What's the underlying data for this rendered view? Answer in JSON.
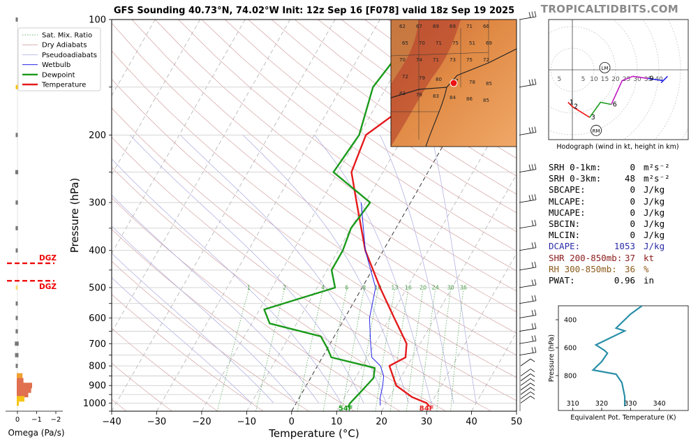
{
  "title": "GFS Sounding 40.73°N, 74.02°W Init: 12z Sep 16 [F078] valid 18z Sep 19 2025",
  "brand": "TROPICALTIDBITS.COM",
  "skewt": {
    "xlabel": "Temperature (°C)",
    "ylabel": "Pressure (hPa)",
    "x_ticks": [
      "−40",
      "−30",
      "−20",
      "−10",
      "0",
      "10",
      "20",
      "30",
      "40",
      "50"
    ],
    "y_ticks": [
      "100",
      "200",
      "300",
      "400",
      "500",
      "600",
      "700",
      "800",
      "900",
      "1000"
    ],
    "legend": [
      "Sat. Mix. Ratio",
      "Dry Adiabats",
      "Pseudoadiabats",
      "Wetbulb",
      "Dewpoint",
      "Temperature"
    ],
    "colors": {
      "temperature": "#e41a1c",
      "dewpoint": "#1a9a1a",
      "wetbulb": "#2424e8",
      "dry": "#d4a0a0",
      "moist": "#a8a8e0",
      "mix": "#3c9a3c"
    },
    "mix_ratio_labels": [
      "1",
      "2",
      "4",
      "6",
      "8",
      "10",
      "13",
      "16",
      "20",
      "24",
      "30",
      "36"
    ],
    "surface_temp_label": "84F",
    "surface_dew_label": "54F"
  },
  "chart_data": [
    {
      "type": "line",
      "title": "GFS Sounding 40.73°N, 74.02°W Init: 12z Sep 16 [F078] valid 18z Sep 19 2025",
      "xlabel": "Temperature (°C)",
      "ylabel": "Pressure (hPa)",
      "xlim": [
        -40,
        50
      ],
      "ylim": [
        1050,
        100
      ],
      "log_y": true,
      "series": [
        {
          "name": "Temperature",
          "points": [
            [
              -0.5,
              100
            ],
            [
              -10,
              150
            ],
            [
              -18.5,
              200
            ],
            [
              -17,
              250
            ],
            [
              -12,
              300
            ],
            [
              -4,
              400
            ],
            [
              4,
              500
            ],
            [
              11,
              600
            ],
            [
              17,
              700
            ],
            [
              18.5,
              760
            ],
            [
              16,
              800
            ],
            [
              20,
              900
            ],
            [
              25,
              965
            ],
            [
              29,
              1000
            ],
            [
              30,
              1020
            ]
          ]
        },
        {
          "name": "Dewpoint",
          "points": [
            [
              -20,
              100
            ],
            [
              -23,
              150
            ],
            [
              -20,
              200
            ],
            [
              -21,
              250
            ],
            [
              -9,
              300
            ],
            [
              -10,
              350
            ],
            [
              -9,
              400
            ],
            [
              -9,
              450
            ],
            [
              -6,
              500
            ],
            [
              -19,
              570
            ],
            [
              -16,
              620
            ],
            [
              -3,
              670
            ],
            [
              0,
              720
            ],
            [
              2,
              760
            ],
            [
              13,
              810
            ],
            [
              14,
              860
            ],
            [
              13,
              930
            ],
            [
              12,
              1000
            ],
            [
              12,
              1025
            ]
          ]
        },
        {
          "name": "Wetbulb",
          "points": [
            [
              -11,
              300
            ],
            [
              -4,
              400
            ],
            [
              3,
              500
            ],
            [
              5.5,
              600
            ],
            [
              9,
              700
            ],
            [
              11,
              760
            ],
            [
              14,
              800
            ],
            [
              16,
              850
            ],
            [
              17,
              900
            ],
            [
              18,
              970
            ],
            [
              19,
              1015
            ]
          ]
        }
      ]
    },
    {
      "type": "line",
      "title": "Hodograph (wind in kt, height in km)",
      "xlim": [
        -15,
        50
      ],
      "ylim": [
        -50,
        50
      ],
      "series": [
        {
          "name": "0-3 km",
          "points": [
            [
              -2,
              -15
            ],
            [
              0,
              -17
            ],
            [
              8,
              -22
            ]
          ]
        },
        {
          "name": "3-6 km",
          "points": [
            [
              8,
              -22
            ],
            [
              13,
              -15
            ],
            [
              18,
              -16
            ]
          ]
        },
        {
          "name": "6-9 km",
          "points": [
            [
              18,
              -16
            ],
            [
              23,
              -5
            ],
            [
              28,
              -3
            ],
            [
              35,
              -4
            ]
          ]
        },
        {
          "name": "9+ km",
          "points": [
            [
              35,
              -4
            ],
            [
              42,
              -5
            ],
            [
              44,
              -3
            ],
            [
              41,
              -6
            ]
          ]
        }
      ],
      "height_labels": [
        "1",
        "2",
        "3",
        "6",
        "9"
      ],
      "ring_labels": [
        "5",
        "5",
        "10",
        "15",
        "20",
        "25",
        "30",
        "35",
        "40"
      ],
      "markers": [
        "LM",
        "RM"
      ]
    },
    {
      "type": "line",
      "title": "Equivalent Pot. Temperature",
      "xlabel": "Equivalent Pot. Temperature (K)",
      "ylabel": "Pressure (hPa)",
      "xlim": [
        305,
        350
      ],
      "ylim": [
        1050,
        300
      ],
      "x_ticks": [
        310,
        320,
        330,
        340
      ],
      "y_ticks": [
        400,
        600,
        800
      ],
      "series": [
        {
          "name": "theta-e",
          "points": [
            [
              334,
              300
            ],
            [
              330,
              360
            ],
            [
              327,
              420
            ],
            [
              325,
              460
            ],
            [
              328,
              480
            ],
            [
              322,
              540
            ],
            [
              318,
              580
            ],
            [
              321,
              620
            ],
            [
              322,
              640
            ],
            [
              320,
              700
            ],
            [
              317,
              760
            ],
            [
              325,
              790
            ],
            [
              327,
              850
            ],
            [
              328,
              950
            ],
            [
              328,
              1020
            ]
          ]
        }
      ]
    },
    {
      "type": "bar",
      "title": "",
      "xlabel": "Omega (Pa/s)",
      "x_ticks": [
        "0",
        "−1",
        "−2"
      ],
      "levels": [
        100,
        150,
        200,
        250,
        300,
        350,
        400,
        500,
        550,
        600,
        650,
        700,
        750,
        800,
        850,
        875,
        900,
        925,
        950,
        975,
        1000
      ],
      "values": [
        -0.1,
        -0.1,
        -0.1,
        -0.15,
        -0.12,
        -0.12,
        -0.08,
        0.0,
        -0.05,
        -0.05,
        -0.12,
        -0.2,
        -0.18,
        -0.05,
        -0.3,
        -0.35,
        -0.8,
        -0.75,
        -0.6,
        -0.4,
        -0.1
      ],
      "dgz_label": "DGZ"
    }
  ],
  "params": [
    {
      "label": "SRH 0-1km:",
      "value": "0",
      "unit": "m²s⁻²",
      "color": "#000000"
    },
    {
      "label": "SRH 0-3km:",
      "value": "48",
      "unit": "m²s⁻²",
      "color": "#000000"
    },
    {
      "label": "SBCAPE:",
      "value": "0",
      "unit": "J/kg",
      "color": "#000000"
    },
    {
      "label": "MLCAPE:",
      "value": "0",
      "unit": "J/kg",
      "color": "#000000"
    },
    {
      "label": "MUCAPE:",
      "value": "0",
      "unit": "J/kg",
      "color": "#000000"
    },
    {
      "label": "SBCIN:",
      "value": "0",
      "unit": "J/kg",
      "color": "#000000"
    },
    {
      "label": "MLCIN:",
      "value": "0",
      "unit": "J/kg",
      "color": "#000000"
    },
    {
      "label": "DCAPE:",
      "value": "1053",
      "unit": "J/kg",
      "color": "#2a2aa8"
    },
    {
      "label": "SHR 200-850mb:",
      "value": "37",
      "unit": "kt",
      "color": "#8b1a1a"
    },
    {
      "label": "RH 300-850mb:",
      "value": "36",
      "unit": "%",
      "color": "#8b5a1a"
    },
    {
      "label": "PWAT:",
      "value": "0.96",
      "unit": "in",
      "color": "#000000"
    }
  ],
  "inset_map": {
    "numbers": [
      "62",
      "67",
      "69",
      "69",
      "71",
      "66",
      "65",
      "70",
      "71",
      "75",
      "51",
      "69",
      "70",
      "74",
      "71",
      "73",
      "75",
      "72",
      "72",
      "79",
      "80",
      "77",
      "78",
      "85",
      "83",
      "78",
      "83",
      "84",
      "86",
      "85"
    ]
  }
}
